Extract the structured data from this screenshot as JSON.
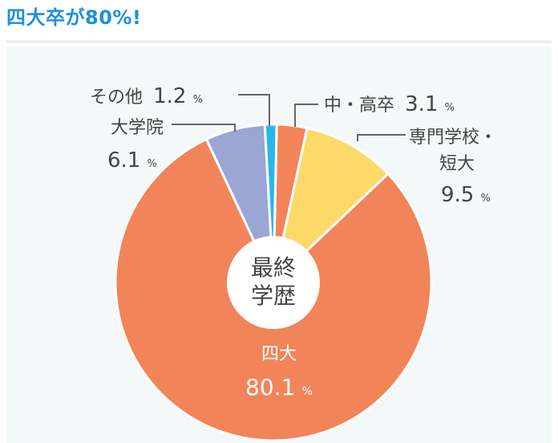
{
  "page_title": "四大卒が80%!",
  "chart_data": {
    "type": "pie",
    "title": "",
    "center_label": [
      "最終",
      "学歴"
    ],
    "slices": [
      {
        "label": "中・高卒",
        "value": 3.1,
        "value_text": "3.1",
        "unit": "%",
        "color": "#f2845a"
      },
      {
        "label": "専門学校・短大",
        "label_lines": [
          "専門学校・",
          "短大"
        ],
        "value": 9.5,
        "value_text": "9.5",
        "unit": "%",
        "color": "#fdd96a"
      },
      {
        "label": "四大",
        "value": 80.1,
        "value_text": "80.1",
        "unit": "%",
        "color": "#f2845a"
      },
      {
        "label": "大学院",
        "value": 6.1,
        "value_text": "6.1",
        "unit": "%",
        "color": "#9aa6d3"
      },
      {
        "label": "その他",
        "value": 1.2,
        "value_text": "1.2",
        "unit": "%",
        "color": "#29b6ea"
      }
    ],
    "legend": "none"
  }
}
